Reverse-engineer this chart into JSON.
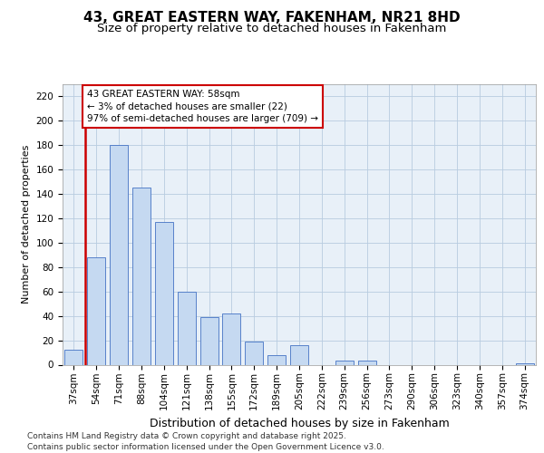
{
  "title": "43, GREAT EASTERN WAY, FAKENHAM, NR21 8HD",
  "subtitle": "Size of property relative to detached houses in Fakenham",
  "xlabel": "Distribution of detached houses by size in Fakenham",
  "ylabel": "Number of detached properties",
  "categories": [
    "37sqm",
    "54sqm",
    "71sqm",
    "88sqm",
    "104sqm",
    "121sqm",
    "138sqm",
    "155sqm",
    "172sqm",
    "189sqm",
    "205sqm",
    "222sqm",
    "239sqm",
    "256sqm",
    "273sqm",
    "290sqm",
    "306sqm",
    "323sqm",
    "340sqm",
    "357sqm",
    "374sqm"
  ],
  "values": [
    12,
    88,
    180,
    145,
    117,
    60,
    39,
    42,
    19,
    8,
    16,
    0,
    3,
    3,
    0,
    0,
    0,
    0,
    0,
    0,
    1
  ],
  "bar_color": "#c5d9f1",
  "bar_edge_color": "#4472c4",
  "vline_x": 0.5,
  "annotation_text": "43 GREAT EASTERN WAY: 58sqm\n← 3% of detached houses are smaller (22)\n97% of semi-detached houses are larger (709) →",
  "annotation_box_color": "#ffffff",
  "annotation_box_edge_color": "#cc0000",
  "ylim": [
    0,
    230
  ],
  "yticks": [
    0,
    20,
    40,
    60,
    80,
    100,
    120,
    140,
    160,
    180,
    200,
    220
  ],
  "background_color": "#ffffff",
  "plot_bg_color": "#e8f0f8",
  "grid_color": "#b8cce0",
  "footer_text": "Contains HM Land Registry data © Crown copyright and database right 2025.\nContains public sector information licensed under the Open Government Licence v3.0.",
  "title_fontsize": 11,
  "subtitle_fontsize": 9.5,
  "ylabel_fontsize": 8,
  "xlabel_fontsize": 9,
  "tick_fontsize": 7.5,
  "annotation_fontsize": 7.5,
  "footer_fontsize": 6.5
}
